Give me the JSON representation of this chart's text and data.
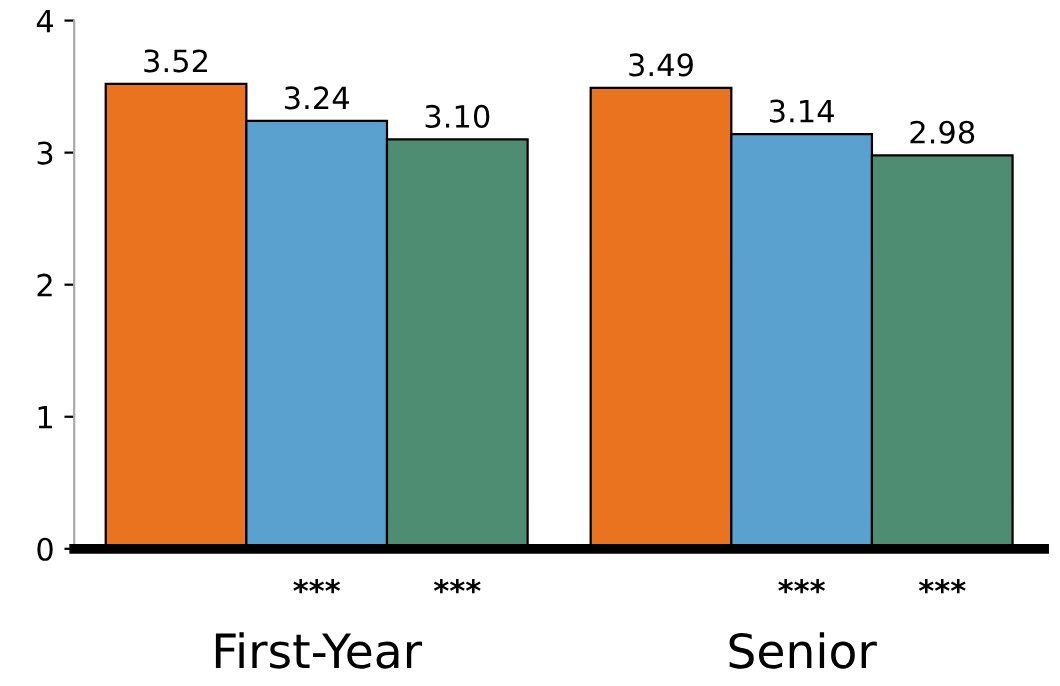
{
  "chart_data": {
    "type": "bar",
    "categories": [
      "First-Year",
      "Senior"
    ],
    "series": [
      {
        "color": "#ea7320",
        "values": [
          3.52,
          3.49
        ],
        "value_labels": [
          "3.52",
          "3.49"
        ]
      },
      {
        "color": "#5ba1cf",
        "values": [
          3.24,
          3.14
        ],
        "value_labels": [
          "3.24",
          "3.14"
        ]
      },
      {
        "color": "#4f8d72",
        "values": [
          3.1,
          2.98
        ],
        "value_labels": [
          "3.10",
          "2.98"
        ]
      }
    ],
    "ylim": [
      0,
      4
    ],
    "yticks": [
      0,
      1,
      2,
      3,
      4
    ],
    "grid": false,
    "annotations": [
      "***",
      "***",
      "***",
      "***"
    ]
  }
}
